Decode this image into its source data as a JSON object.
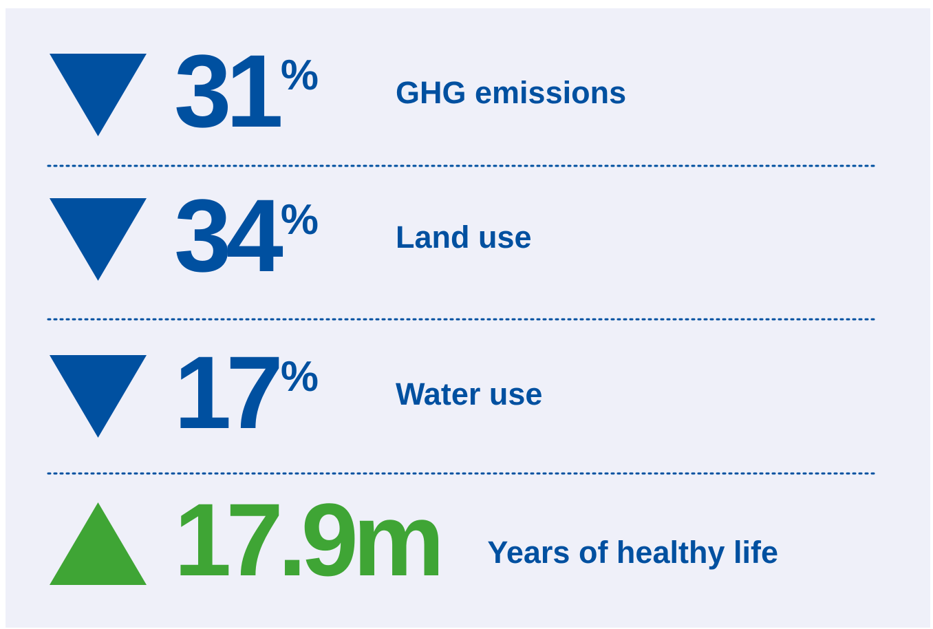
{
  "rows": [
    {
      "number": "31",
      "unit": "%",
      "label": "GHG emissions",
      "direction": "down",
      "color": "#0050a0"
    },
    {
      "number": "34",
      "unit": "%",
      "label": "Land use",
      "direction": "down",
      "color": "#0050a0"
    },
    {
      "number": "17",
      "unit": "%",
      "label": "Water use",
      "direction": "down",
      "color": "#0050a0"
    },
    {
      "number": "17.9m",
      "label": "Years of healthy life",
      "direction": "up",
      "color": "#3fa535"
    }
  ],
  "label_color": "#0050a0",
  "background": "#eff0f9"
}
